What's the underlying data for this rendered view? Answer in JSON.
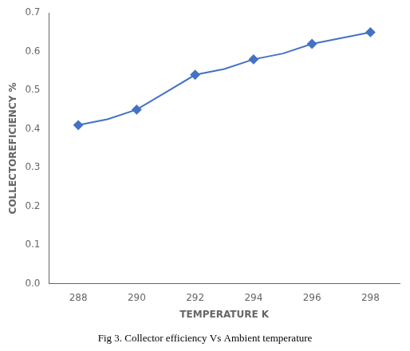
{
  "chart_data": {
    "type": "line",
    "x_label": "TEMPERATURE K",
    "y_label": "COLLECTOREFICIENCY %",
    "caption": "Fig 3. Collector efficiency Vs Ambient temperature",
    "x": [
      288,
      289,
      290,
      291,
      292,
      293,
      294,
      295,
      296,
      297,
      298
    ],
    "series": [
      {
        "color": "#4472C4",
        "line_style": "solid",
        "marker": "none",
        "values": [
          0.41,
          0.425,
          0.45,
          0.495,
          0.54,
          0.555,
          0.58,
          0.595,
          0.62,
          0.635,
          0.65
        ]
      },
      {
        "color": "#4472C4",
        "line_style": "none",
        "marker": "diamond",
        "values": [
          0.41,
          null,
          0.45,
          null,
          0.54,
          null,
          0.58,
          null,
          0.62,
          null,
          0.65
        ]
      }
    ],
    "xlim": [
      287,
      299
    ],
    "ylim": [
      0,
      0.7
    ],
    "xticks": [
      288,
      290,
      292,
      294,
      296,
      298
    ],
    "yticks": [
      {
        "value": 0,
        "label": "0.0"
      },
      0.1,
      0.2,
      0.3,
      0.4,
      0.5,
      0.6,
      0.7
    ],
    "grid": false
  }
}
